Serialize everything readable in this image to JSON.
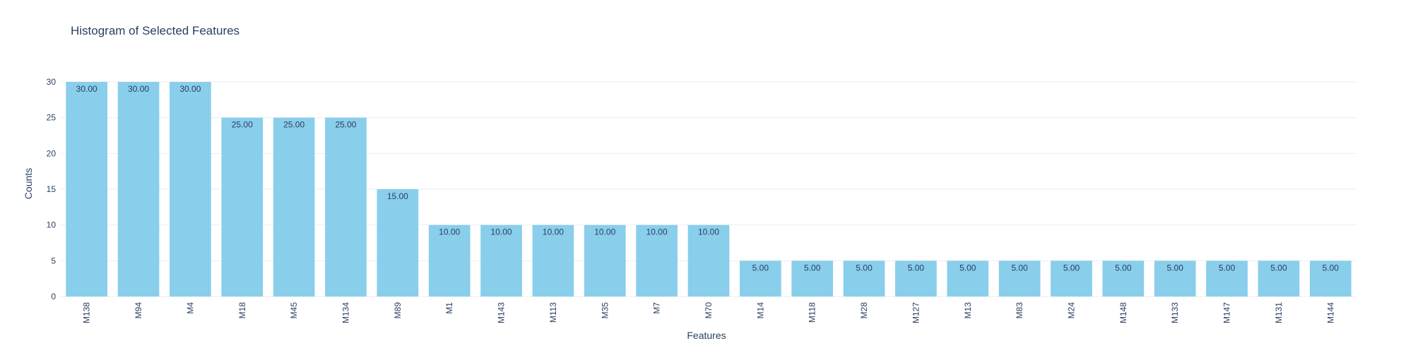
{
  "chart_data": {
    "type": "bar",
    "title": "Histogram of Selected Features",
    "xlabel": "Features",
    "ylabel": "Counts",
    "ylim": [
      0,
      30
    ],
    "yticks": [
      0,
      5,
      10,
      15,
      20,
      25,
      30
    ],
    "grid": true,
    "bar_color": "#89CEEB",
    "categories": [
      "M138",
      "M94",
      "M4",
      "M18",
      "M45",
      "M134",
      "M89",
      "M1",
      "M143",
      "M113",
      "M35",
      "M7",
      "M70",
      "M14",
      "M118",
      "M28",
      "M127",
      "M13",
      "M83",
      "M24",
      "M148",
      "M133",
      "M147",
      "M131",
      "M144"
    ],
    "values": [
      30,
      30,
      30,
      25,
      25,
      25,
      15,
      10,
      10,
      10,
      10,
      10,
      10,
      5,
      5,
      5,
      5,
      5,
      5,
      5,
      5,
      5,
      5,
      5,
      5
    ],
    "data_labels": [
      "30.00",
      "30.00",
      "30.00",
      "25.00",
      "25.00",
      "25.00",
      "15.00",
      "10.00",
      "10.00",
      "10.00",
      "10.00",
      "10.00",
      "10.00",
      "5.00",
      "5.00",
      "5.00",
      "5.00",
      "5.00",
      "5.00",
      "5.00",
      "5.00",
      "5.00",
      "5.00",
      "5.00",
      "5.00"
    ]
  }
}
